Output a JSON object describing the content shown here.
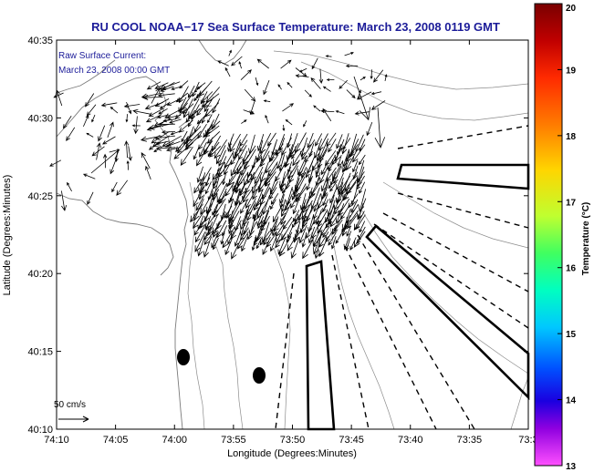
{
  "chart_data": {
    "type": "map-vector-field",
    "title": "RU COOL  NOAA−17  Sea Surface Temperature:  March 23, 2008 0119 GMT",
    "xlabel": "Longitude (Degrees:Minutes)",
    "ylabel": "Latitude (Degrees:Minutes)",
    "x_ticks": [
      "74:10",
      "74:05",
      "74:00",
      "73:55",
      "73:50",
      "73:45",
      "73:40",
      "73:35",
      "73:3"
    ],
    "y_ticks": [
      "40:10",
      "40:15",
      "40:20",
      "40:25",
      "40:30",
      "40:35"
    ],
    "xlim_minutes_west": [
      4450,
      4410
    ],
    "ylim_minutes_north": [
      2410,
      2435
    ],
    "annotation_lines": [
      "Raw Surface Current:",
      "March 23, 2008 00:00 GMT"
    ],
    "scale_label": "50 cm/s",
    "colorbar": {
      "label": "Temperature (°C)",
      "ticks": [
        "20",
        "19",
        "18",
        "17",
        "16",
        "15",
        "14",
        "13"
      ],
      "range": [
        13,
        20
      ]
    },
    "markers": [
      {
        "name": "buoy-1",
        "lon_minutes_west": 4438.8,
        "lat_minutes_north": 2414.5
      },
      {
        "name": "buoy-2",
        "lon_minutes_west": 4432.2,
        "lat_minutes_north": 2413.4
      }
    ]
  },
  "colors": {
    "axis": "#000000",
    "title": "#1c1c99",
    "annotation": "#1c1c99",
    "land": "#ffffff",
    "contour": "#808080"
  }
}
